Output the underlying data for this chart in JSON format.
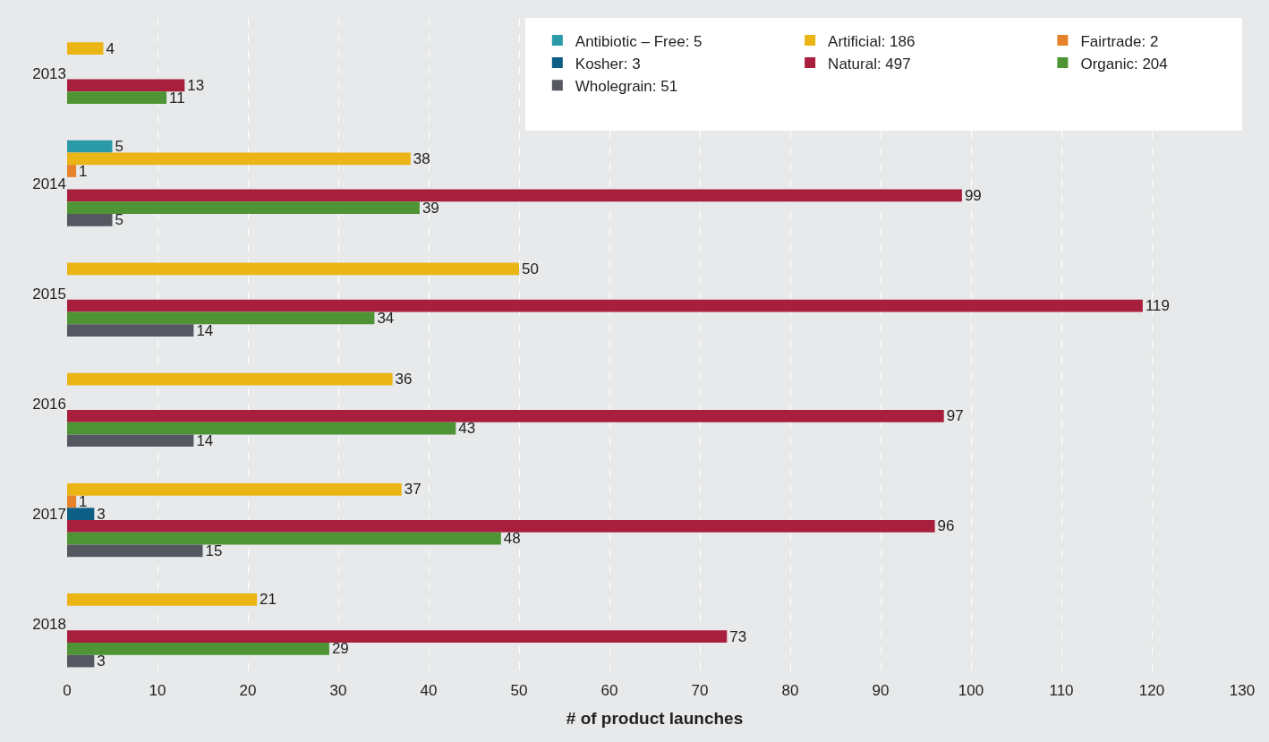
{
  "chart_data": {
    "type": "bar",
    "orientation": "horizontal",
    "xlabel": "# of product launches",
    "categories": [
      "2013",
      "2014",
      "2015",
      "2016",
      "2017",
      "2018"
    ],
    "series": [
      {
        "name": "Antibiotic – Free: 5",
        "color": "#2a9aa8",
        "values": [
          null,
          5,
          null,
          null,
          null,
          null
        ]
      },
      {
        "name": "Artificial: 186",
        "color": "#ebb515",
        "values": [
          4,
          38,
          50,
          36,
          37,
          21
        ]
      },
      {
        "name": "Fairtrade: 2",
        "color": "#e5822a",
        "values": [
          null,
          1,
          null,
          null,
          1,
          null
        ]
      },
      {
        "name": "Kosher: 3",
        "color": "#0c5e85",
        "values": [
          null,
          null,
          null,
          null,
          3,
          null
        ]
      },
      {
        "name": "Natural: 497",
        "color": "#a81f3e",
        "values": [
          13,
          99,
          119,
          97,
          96,
          73
        ]
      },
      {
        "name": "Organic: 204",
        "color": "#4e9434",
        "values": [
          11,
          39,
          34,
          43,
          48,
          29
        ]
      },
      {
        "name": "Wholegrain: 51",
        "color": "#555860",
        "values": [
          null,
          5,
          14,
          14,
          15,
          3
        ]
      }
    ],
    "xlim": [
      0,
      130
    ],
    "xticks": [
      0,
      10,
      20,
      30,
      40,
      50,
      60,
      70,
      80,
      90,
      100,
      110,
      120,
      130
    ],
    "grid": "x",
    "legend": "top right",
    "data_labels": true
  }
}
